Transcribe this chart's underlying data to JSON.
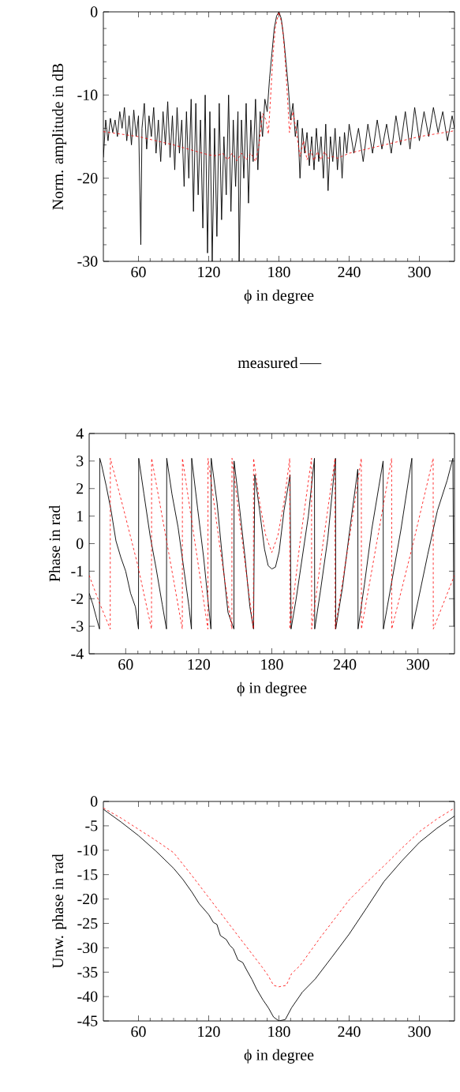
{
  "chart_data": [
    {
      "type": "line",
      "xlabel": "ϕ in degree",
      "ylabel": "Norm. amplitude in dB",
      "xlim": [
        30,
        330
      ],
      "ylim": [
        -30,
        0
      ],
      "xticks": [
        60,
        120,
        180,
        240,
        300
      ],
      "yticks": [
        0,
        -10,
        -20,
        -30
      ],
      "legend": "bottom",
      "series": [
        {
          "name": "measured",
          "color": "#000000",
          "line_style": "solid",
          "x": [
            30,
            32,
            34,
            36,
            38,
            40,
            42,
            44,
            46,
            48,
            50,
            52,
            54,
            56,
            58,
            60,
            62,
            63,
            65,
            67,
            69,
            71,
            73,
            75,
            77,
            79,
            81,
            83,
            85,
            87,
            89,
            91,
            93,
            95,
            97,
            99,
            101,
            103,
            105,
            107,
            109,
            111,
            113,
            115,
            117,
            119,
            121,
            123,
            125,
            127,
            129,
            131,
            133,
            135,
            137,
            139,
            141,
            143,
            145,
            146,
            148,
            150,
            152,
            154,
            156,
            158,
            160,
            162,
            164,
            166,
            168,
            170,
            172,
            174,
            176,
            178,
            180,
            182,
            184,
            186,
            188,
            190,
            192,
            194,
            196,
            198,
            200,
            202,
            204,
            206,
            208,
            210,
            212,
            214,
            216,
            218,
            220,
            222,
            224,
            226,
            228,
            230,
            232,
            234,
            236,
            238,
            240,
            244,
            248,
            252,
            256,
            260,
            264,
            268,
            272,
            276,
            280,
            284,
            288,
            292,
            296,
            300,
            304,
            308,
            312,
            316,
            320,
            324,
            328,
            330
          ],
          "values": [
            -17.5,
            -13,
            -15.5,
            -12.8,
            -14.5,
            -13,
            -15,
            -12,
            -14,
            -11.5,
            -15.5,
            -12.5,
            -16,
            -11.8,
            -15,
            -12.5,
            -28,
            -14,
            -11,
            -16.5,
            -12.5,
            -15,
            -11.5,
            -17,
            -13,
            -18,
            -12,
            -16,
            -10.8,
            -17.5,
            -12.5,
            -19,
            -11.5,
            -17,
            -13,
            -21,
            -12,
            -20,
            -10.5,
            -24,
            -11,
            -22,
            -13,
            -26,
            -10,
            -29,
            -12,
            -30,
            -14,
            -27,
            -11,
            -25,
            -15,
            -22,
            -10,
            -24,
            -13,
            -21,
            -12,
            -30,
            -13,
            -20,
            -11,
            -23,
            -13,
            -18,
            -10.5,
            -19,
            -12,
            -15,
            -10.5,
            -12,
            -8,
            -5,
            -2,
            -0.5,
            0,
            -0.8,
            -3,
            -6,
            -9,
            -13,
            -11,
            -15,
            -13,
            -20,
            -14,
            -17,
            -14.5,
            -18.5,
            -15,
            -19,
            -14,
            -18,
            -15,
            -20,
            -13.5,
            -21.5,
            -15,
            -18,
            -14,
            -19,
            -15,
            -20,
            -14.5,
            -17,
            -13.5,
            -17,
            -14,
            -18,
            -13.5,
            -17,
            -13,
            -16.5,
            -13.5,
            -17,
            -12.5,
            -16,
            -12,
            -16.5,
            -11.5,
            -15.5,
            -12,
            -15,
            -11.5,
            -14.5,
            -12,
            -15.5,
            -12.5,
            -14
          ]
        },
        {
          "color": "#ff0000",
          "line_style": "dashed",
          "x": [
            30,
            60,
            90,
            120,
            127,
            132,
            136,
            140,
            144,
            148,
            152,
            156,
            160,
            163,
            166,
            169,
            171,
            173,
            175,
            177,
            180,
            183,
            185,
            187,
            189,
            192,
            195,
            198,
            201,
            204,
            207,
            210,
            213,
            216,
            219,
            222,
            226,
            230,
            240,
            270,
            300,
            330
          ],
          "values": [
            -14.4,
            -15,
            -16,
            -17.2,
            -17.3,
            -17,
            -17.8,
            -17,
            -17.9,
            -17,
            -17.8,
            -17,
            -18,
            -16,
            -12.2,
            -13,
            -14.7,
            -10,
            -5,
            -1.8,
            0,
            -1.8,
            -5,
            -9.5,
            -14.5,
            -12,
            -14.5,
            -17.4,
            -15.5,
            -17.8,
            -16.6,
            -17.9,
            -16.8,
            -17.8,
            -16.8,
            -17.6,
            -17.4,
            -17.6,
            -17,
            -16,
            -15,
            -14.3
          ]
        }
      ]
    },
    {
      "type": "line",
      "xlabel": "ϕ in degree",
      "ylabel": "Phase in rad",
      "xlim": [
        30,
        330
      ],
      "ylim": [
        -4,
        4
      ],
      "xticks": [
        60,
        120,
        180,
        240,
        300
      ],
      "yticks": [
        -4,
        -3,
        -2,
        -1,
        0,
        1,
        2,
        3,
        4
      ],
      "series": [
        {
          "color": "#000000",
          "line_style": "solid",
          "x": [
            30,
            33,
            36,
            38.5,
            38.7,
            40,
            44,
            48,
            52,
            56,
            60,
            64,
            68,
            70.5,
            70.7,
            75,
            80,
            85,
            90,
            93.5,
            93.7,
            98,
            103,
            108,
            112,
            114,
            114.2,
            119,
            124,
            130,
            130.2,
            135,
            140,
            144,
            148.9,
            149,
            153,
            158,
            162,
            165,
            166,
            170,
            174,
            177,
            180,
            183,
            186,
            190,
            195,
            195.8,
            200,
            205,
            210,
            215,
            215.2,
            220,
            226,
            232.3,
            232.5,
            238,
            244,
            250.6,
            250.8,
            256,
            262,
            268,
            271.4,
            271.6,
            278,
            286,
            295,
            295.2,
            300,
            308,
            316,
            324,
            328.7,
            329.5,
            330
          ],
          "values": [
            -1.8,
            -2.2,
            -2.7,
            -3.1,
            3.1,
            2.9,
            2.1,
            1.2,
            0.1,
            -0.5,
            -1.0,
            -1.8,
            -2.3,
            -3.1,
            3.1,
            1.8,
            0.3,
            -0.9,
            -2.2,
            -3.1,
            3.1,
            1.8,
            0.6,
            -1.0,
            -2.3,
            -3.1,
            3.1,
            1.3,
            -0.5,
            -3.1,
            3.1,
            1.5,
            -0.8,
            -2.5,
            -3.1,
            3.0,
            1.5,
            -0.5,
            -2.3,
            -3.1,
            2.5,
            1.2,
            -0.2,
            -0.8,
            -0.92,
            -0.85,
            -0.3,
            1.2,
            2.5,
            -3.1,
            -2.0,
            -0.5,
            1.0,
            3.1,
            -3.1,
            -1.7,
            0.2,
            3.1,
            -3.1,
            -1.6,
            0.5,
            2.7,
            -3.1,
            -1.5,
            0.5,
            2.1,
            3.0,
            -3.1,
            -1.5,
            0.5,
            3.1,
            -3.1,
            -2.1,
            -0.4,
            1.2,
            2.3,
            3.1,
            -3.0,
            -3.0
          ]
        },
        {
          "color": "#ff0000",
          "line_style": "dashed",
          "x": [
            30,
            38,
            47.3,
            47.4,
            58,
            70,
            81.2,
            81.3,
            94,
            106.5,
            106.6,
            117,
            127.5,
            127.6,
            137,
            147.2,
            147.3,
            156,
            164.9,
            165,
            170,
            175,
            180,
            185,
            190,
            194.7,
            194.8,
            203,
            212.6,
            212.7,
            222,
            231.9,
            232,
            243,
            253.5,
            253.6,
            266,
            278.4,
            278.5,
            296,
            312.5,
            312.6,
            330
          ],
          "values": [
            -1.15,
            -2.1,
            -3.1,
            3.1,
            1.3,
            -0.8,
            -3.1,
            3.1,
            0,
            -3.1,
            3.1,
            0,
            -3.1,
            3.1,
            0,
            -3.1,
            3.1,
            0,
            -3.1,
            3.1,
            1.5,
            0.3,
            -0.32,
            0.3,
            1.5,
            3.1,
            -3.1,
            0,
            3.1,
            -3.1,
            0,
            3.1,
            -3.1,
            0,
            3.1,
            -3.1,
            0,
            3.1,
            -3.1,
            0,
            3.1,
            -3.1,
            -1.15
          ]
        }
      ]
    },
    {
      "type": "line",
      "xlabel": "ϕ in degree",
      "ylabel": "Unw. phase in rad",
      "xlim": [
        30,
        330
      ],
      "ylim": [
        -45,
        0
      ],
      "xticks": [
        60,
        120,
        180,
        240,
        300
      ],
      "yticks": [
        0,
        -5,
        -10,
        -15,
        -20,
        -25,
        -30,
        -35,
        -40,
        -45
      ],
      "series": [
        {
          "color": "#000000",
          "line_style": "solid",
          "x": [
            30,
            45,
            60,
            75,
            90,
            98,
            105.7,
            112,
            120,
            124,
            127,
            130,
            135,
            138,
            141,
            145,
            149,
            153,
            157,
            161,
            166.4,
            171,
            175.4,
            180,
            185.5,
            190.8,
            200,
            211,
            225,
            240,
            255,
            269.8,
            285,
            300,
            315,
            330
          ],
          "values": [
            -1.6,
            -4.2,
            -7,
            -10.2,
            -13.7,
            -16,
            -18.6,
            -21,
            -23.2,
            -24.8,
            -25.2,
            -27.5,
            -28.3,
            -29.5,
            -30.2,
            -32.5,
            -33,
            -34.8,
            -36.5,
            -38.5,
            -40.7,
            -42.3,
            -44.2,
            -45,
            -44.7,
            -42.3,
            -39.1,
            -36.4,
            -32,
            -27.2,
            -21.8,
            -16.4,
            -12.2,
            -8.4,
            -5.5,
            -3
          ]
        },
        {
          "color": "#ff0000",
          "line_style": "dashed",
          "x": [
            30,
            45,
            60,
            75,
            90,
            105,
            120,
            144,
            166.4,
            171,
            175.4,
            180,
            186.3,
            190.8,
            197.9,
            216,
            240,
            255,
            269.8,
            285,
            300,
            315,
            330
          ],
          "values": [
            -1.35,
            -3.4,
            -5.7,
            -8,
            -10.5,
            -15,
            -19.7,
            -27.2,
            -34.2,
            -35.8,
            -37.7,
            -38,
            -37.7,
            -35.3,
            -33.7,
            -27.7,
            -20.2,
            -16.6,
            -13.2,
            -9.6,
            -6.2,
            -3.6,
            -1.35
          ]
        }
      ]
    }
  ]
}
